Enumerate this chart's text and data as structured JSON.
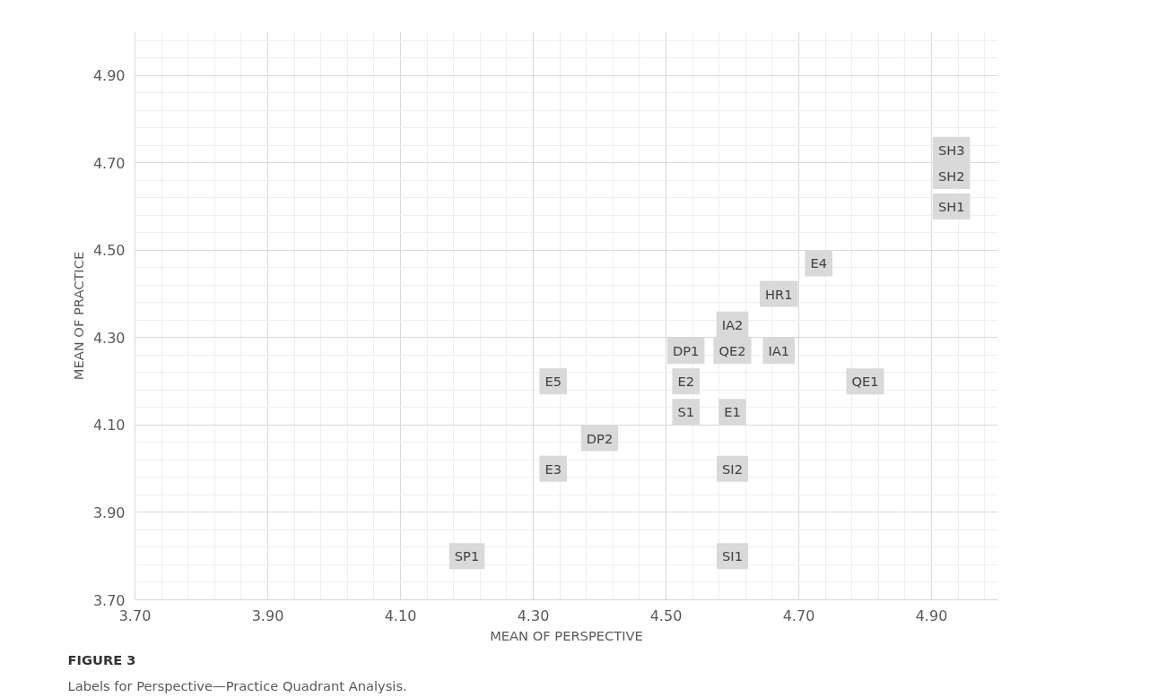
{
  "chart_data": {
    "type": "scatter",
    "title": "FIGURE 3",
    "subtitle": "Labels for Perspective—Practice Quadrant Analysis.",
    "xlabel": "MEAN OF PERSPECTIVE",
    "ylabel": "MEAN OF PRACTICE",
    "x": [
      4.93,
      4.93,
      4.93,
      4.73,
      4.67,
      4.6,
      4.53,
      4.6,
      4.67,
      4.33,
      4.53,
      4.8,
      4.53,
      4.6,
      4.4,
      4.33,
      4.6,
      4.2,
      4.6
    ],
    "values": [
      4.73,
      4.67,
      4.6,
      4.47,
      4.4,
      4.33,
      4.27,
      4.27,
      4.27,
      4.2,
      4.2,
      4.2,
      4.13,
      4.13,
      4.07,
      4.0,
      4.0,
      3.8,
      3.8
    ],
    "value_labels": [
      "SH3",
      "SH2",
      "SH1",
      "E4",
      "HR1",
      "IA2",
      "DP1",
      "QE2",
      "IA1",
      "E5",
      "E2",
      "QE1",
      "S1",
      "E1",
      "DP2",
      "E3",
      "SI2",
      "SP1",
      "SI1"
    ],
    "color": "#d9d9d9",
    "marker": "square",
    "grid": true,
    "xlim": [
      3.7,
      5.0
    ],
    "ylim": [
      3.7,
      5.0
    ],
    "xticks": [
      {
        "value": 3.7,
        "label": "3.70"
      },
      {
        "value": 3.9,
        "label": "3.90"
      },
      {
        "value": 4.1,
        "label": "4.10"
      },
      {
        "value": 4.3,
        "label": "4.30"
      },
      {
        "value": 4.5,
        "label": "4.50"
      },
      {
        "value": 4.7,
        "label": "4.70"
      },
      {
        "value": 4.9,
        "label": "4.90"
      }
    ],
    "yticks": [
      {
        "value": 3.7,
        "label": "3.70"
      },
      {
        "value": 3.9,
        "label": "3.90"
      },
      {
        "value": 4.1,
        "label": "4.10"
      },
      {
        "value": 4.3,
        "label": "4.30"
      },
      {
        "value": 4.5,
        "label": "4.50"
      },
      {
        "value": 4.7,
        "label": "4.70"
      },
      {
        "value": 4.9,
        "label": "4.90"
      }
    ]
  }
}
